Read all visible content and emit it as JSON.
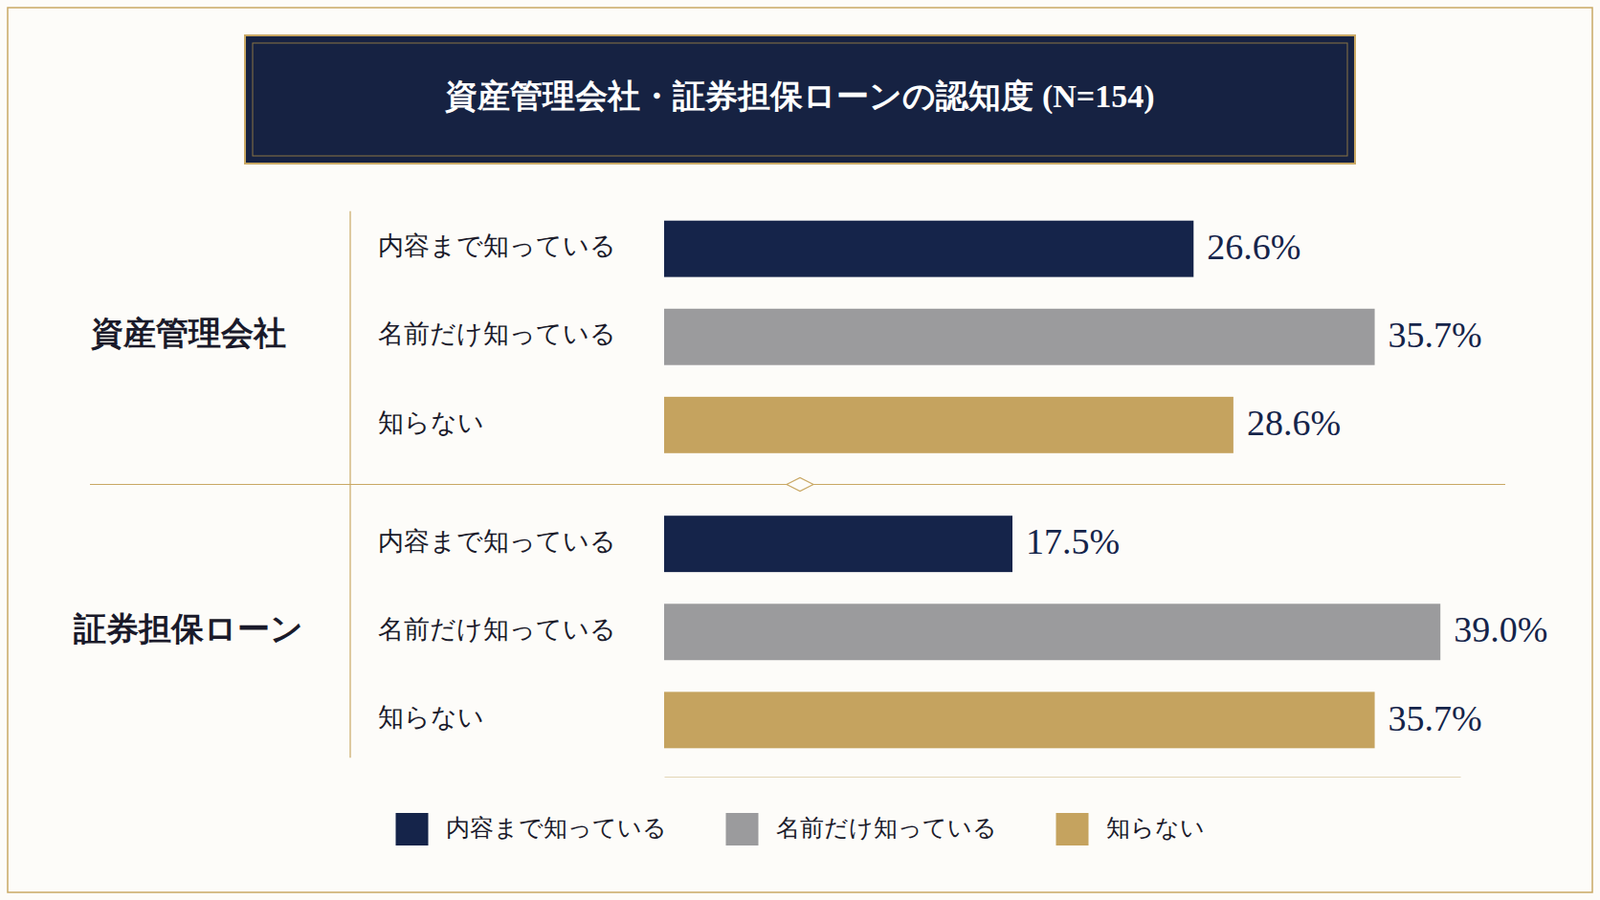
{
  "chart_data": {
    "type": "bar",
    "orientation": "horizontal",
    "title": "資産管理会社・証券担保ローンの認知度 (N=154)",
    "categories": [
      "資産管理会社",
      "証券担保ローン"
    ],
    "series": [
      {
        "name": "内容まで知っている",
        "color": "#15244a",
        "values": [
          26.6,
          17.5
        ],
        "value_labels": [
          "26.6%",
          "17.5%"
        ]
      },
      {
        "name": "名前だけ知っている",
        "color": "#9b9b9d",
        "values": [
          35.7,
          39.0
        ],
        "value_labels": [
          "35.7%",
          "39.0%"
        ]
      },
      {
        "name": "知らない",
        "color": "#c5a35f",
        "values": [
          28.6,
          35.7
        ],
        "value_labels": [
          "28.6%",
          "35.7%"
        ]
      }
    ],
    "xlim": [
      0,
      40
    ],
    "data_labels": true,
    "tick_labels": false,
    "legend": "bottom"
  }
}
